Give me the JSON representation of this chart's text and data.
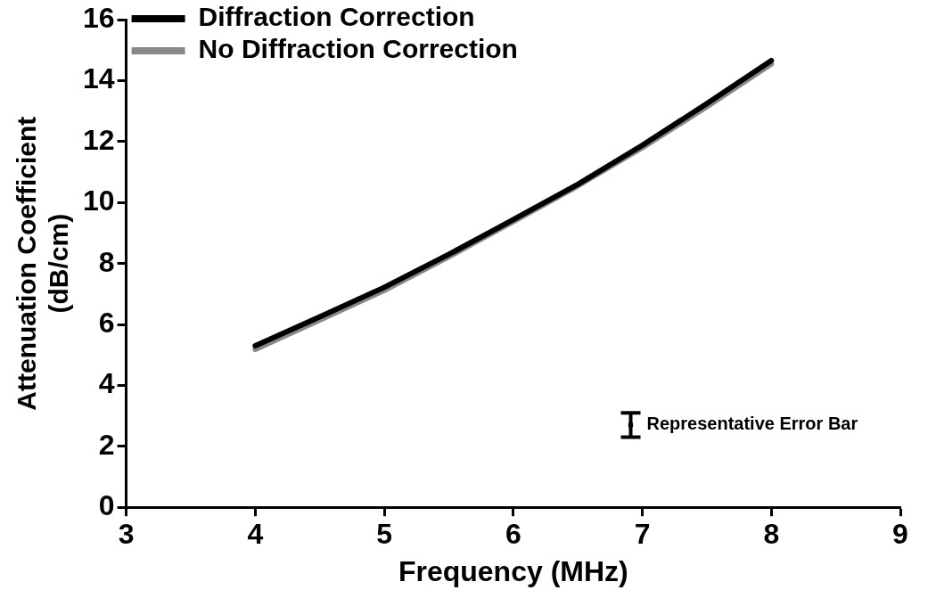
{
  "chart_data": {
    "type": "line",
    "xlabel": "Frequency (MHz)",
    "ylabel": "Attenuation Coefficient\n(dB/cm)",
    "x": [
      4,
      4.5,
      5,
      5.5,
      6,
      6.5,
      7,
      7.5,
      8
    ],
    "series": [
      {
        "name": "Diffraction Correction",
        "color": "#000000",
        "values": [
          5.3,
          6.25,
          7.22,
          8.3,
          9.44,
          10.6,
          11.88,
          13.25,
          14.66
        ]
      },
      {
        "name": "No Diffraction Correction",
        "color": "#888888",
        "values": [
          5.18,
          6.15,
          7.12,
          8.22,
          9.38,
          10.55,
          11.8,
          13.15,
          14.55
        ]
      },
      {
        "type": "scatter",
        "color": "#000000",
        "x": [
          6.91
        ],
        "values": [
          2.7
        ],
        "errors": [
          [
            2.3,
            3.1
          ]
        ],
        "marker": "square"
      }
    ],
    "annotations": [
      "Representative Error Bar"
    ],
    "xlim": [
      3,
      9
    ],
    "xticks": [
      3,
      4,
      5,
      6,
      7,
      8,
      9
    ],
    "ylim": [
      0,
      16
    ],
    "yticks": [
      0,
      2,
      4,
      6,
      8,
      10,
      12,
      14,
      16
    ],
    "grid": false,
    "legend": "top left"
  }
}
